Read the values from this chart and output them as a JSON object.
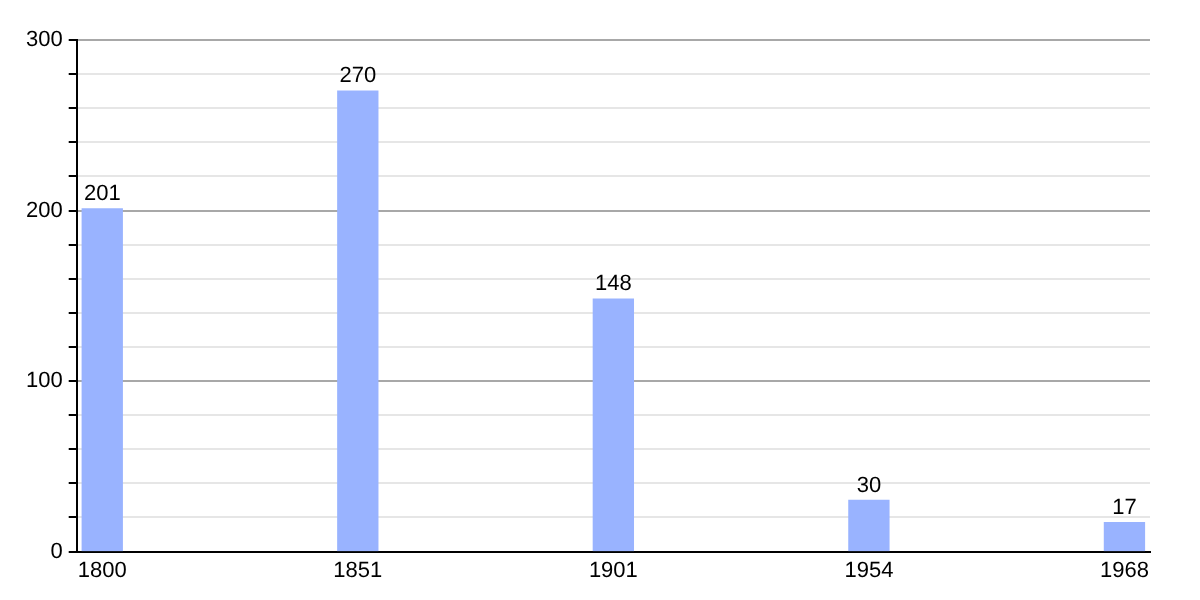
{
  "chart_data": {
    "type": "bar",
    "categories": [
      "1800",
      "1851",
      "1901",
      "1954",
      "1968"
    ],
    "values": [
      201,
      270,
      148,
      30,
      17
    ],
    "color": "#99b3ff",
    "ylim": [
      0,
      300
    ],
    "yticks": [
      0,
      {
        "value": 20,
        "label": null
      },
      {
        "value": 40,
        "label": null
      },
      {
        "value": 60,
        "label": null
      },
      {
        "value": 80,
        "label": null
      },
      100,
      {
        "value": 120,
        "label": null
      },
      {
        "value": 140,
        "label": null
      },
      {
        "value": 160,
        "label": null
      },
      {
        "value": 180,
        "label": null
      },
      200,
      {
        "value": 220,
        "label": null
      },
      {
        "value": 240,
        "label": null
      },
      {
        "value": 260,
        "label": null
      },
      {
        "value": 280,
        "label": null
      },
      300
    ],
    "grid": "y",
    "data_labels": true
  }
}
